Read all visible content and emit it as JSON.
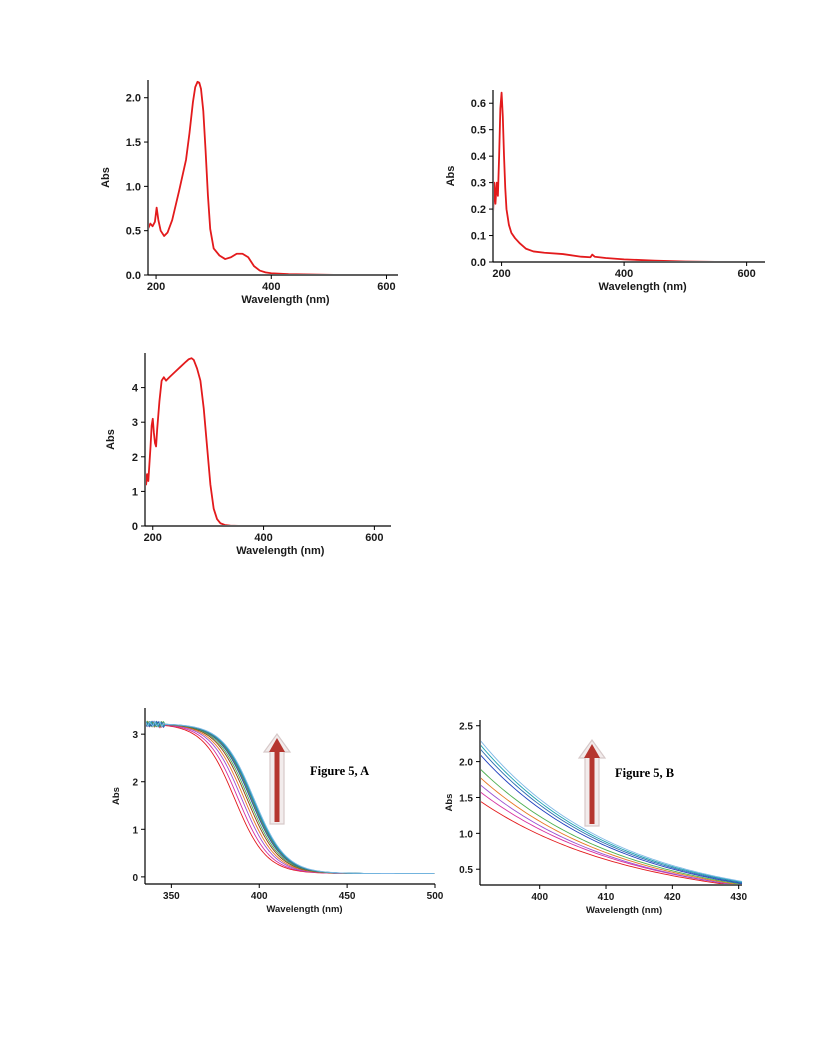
{
  "chart_data": [
    {
      "id": "p1",
      "type": "line",
      "xlabel": "Wavelength (nm)",
      "ylabel": "Abs",
      "xlim": [
        186,
        620
      ],
      "ylim": [
        0,
        2.2
      ],
      "xticks": [
        200,
        400,
        600
      ],
      "yticks": [
        0.0,
        0.5,
        1.0,
        1.5,
        2.0
      ],
      "xticklabels": [
        "200",
        "400",
        "600"
      ],
      "yticklabels": [
        "0.0",
        "0.5",
        "1.0",
        "1.5",
        "2.0"
      ],
      "series": [
        {
          "color": "#e31a1c",
          "x": [
            186,
            190,
            194,
            198,
            201,
            204,
            208,
            214,
            220,
            228,
            240,
            252,
            258,
            264,
            268,
            272,
            275,
            278,
            282,
            286,
            290,
            294,
            300,
            310,
            320,
            330,
            340,
            350,
            360,
            370,
            380,
            390,
            400,
            430,
            470,
            520,
            570,
            620
          ],
          "y": [
            0.52,
            0.58,
            0.55,
            0.6,
            0.76,
            0.62,
            0.5,
            0.44,
            0.48,
            0.62,
            0.95,
            1.3,
            1.6,
            1.95,
            2.12,
            2.18,
            2.17,
            2.1,
            1.85,
            1.4,
            0.9,
            0.52,
            0.3,
            0.22,
            0.18,
            0.2,
            0.24,
            0.24,
            0.2,
            0.1,
            0.05,
            0.03,
            0.02,
            0.01,
            0.005,
            0.0,
            0.0,
            0.0
          ]
        }
      ]
    },
    {
      "id": "p2",
      "type": "line",
      "xlabel": "Wavelength (nm)",
      "ylabel": "Abs",
      "xlim": [
        186,
        630
      ],
      "ylim": [
        0,
        0.65
      ],
      "xticks": [
        200,
        400,
        600
      ],
      "yticks": [
        0.0,
        0.1,
        0.2,
        0.3,
        0.4,
        0.5,
        0.6
      ],
      "xticklabels": [
        "200",
        "400",
        "600"
      ],
      "yticklabels": [
        "0.0",
        "0.1",
        "0.2",
        "0.3",
        "0.4",
        "0.5",
        "0.6"
      ],
      "series": [
        {
          "color": "#e31a1c",
          "x": [
            186,
            188,
            190,
            192,
            194,
            196,
            198,
            200,
            202,
            204,
            206,
            208,
            212,
            216,
            222,
            230,
            240,
            252,
            270,
            300,
            330,
            345,
            348,
            352,
            370,
            400,
            450,
            500,
            560,
            630
          ],
          "y": [
            0.18,
            0.3,
            0.22,
            0.3,
            0.25,
            0.4,
            0.58,
            0.64,
            0.55,
            0.4,
            0.28,
            0.2,
            0.14,
            0.11,
            0.09,
            0.07,
            0.05,
            0.04,
            0.035,
            0.03,
            0.02,
            0.018,
            0.028,
            0.02,
            0.015,
            0.01,
            0.005,
            0.002,
            0.0,
            0.0
          ]
        }
      ]
    },
    {
      "id": "p3",
      "type": "line",
      "xlabel": "Wavelength (nm)",
      "ylabel": "Abs",
      "xlim": [
        186,
        630
      ],
      "ylim": [
        0,
        5.0
      ],
      "xticks": [
        200,
        400,
        600
      ],
      "yticks": [
        0,
        1,
        2,
        3,
        4
      ],
      "xticklabels": [
        "200",
        "400",
        "600"
      ],
      "yticklabels": [
        "0",
        "1",
        "2",
        "3",
        "4"
      ],
      "series": [
        {
          "color": "#e31a1c",
          "x": [
            186,
            188,
            190,
            192,
            194,
            196,
            198,
            200,
            202,
            204,
            206,
            208,
            212,
            216,
            220,
            224,
            230,
            240,
            250,
            260,
            265,
            270,
            274,
            280,
            286,
            292,
            298,
            304,
            310,
            316,
            322,
            330,
            340,
            360,
            400,
            450,
            500,
            560,
            630
          ],
          "y": [
            1.6,
            1.2,
            1.5,
            1.3,
            1.8,
            2.3,
            2.9,
            3.1,
            2.7,
            2.4,
            2.3,
            2.8,
            3.6,
            4.2,
            4.3,
            4.2,
            4.3,
            4.45,
            4.6,
            4.75,
            4.82,
            4.85,
            4.8,
            4.55,
            4.2,
            3.4,
            2.3,
            1.2,
            0.5,
            0.2,
            0.08,
            0.03,
            0.01,
            0.0,
            0.0,
            0.0,
            0.0,
            0.0,
            0.0
          ]
        }
      ]
    },
    {
      "id": "p4",
      "type": "line",
      "xlabel": "Wavelength (nm)",
      "ylabel": "Abs",
      "xlim": [
        335,
        500
      ],
      "ylim": [
        -0.15,
        3.55
      ],
      "xticks": [
        350,
        400,
        450,
        500
      ],
      "yticks": [
        0,
        1,
        2,
        3
      ],
      "xticklabels": [
        "350",
        "400",
        "450",
        "500"
      ],
      "yticklabels": [
        "0",
        "1",
        "2",
        "3"
      ],
      "figure_label": "Figure 5, A",
      "plateau": 3.22,
      "base_level": 0.07,
      "series": [
        {
          "color": "#e31a1c",
          "midpoint": 386,
          "width": 9
        },
        {
          "color": "#d62fa0",
          "midpoint": 388,
          "width": 9
        },
        {
          "color": "#9b4fd1",
          "midpoint": 390,
          "width": 9
        },
        {
          "color": "#e87722",
          "midpoint": 391.5,
          "width": 9
        },
        {
          "color": "#8a3b12",
          "midpoint": 393,
          "width": 9
        },
        {
          "color": "#4caf50",
          "midpoint": 394,
          "width": 9
        },
        {
          "color": "#1f3fbf",
          "midpoint": 395,
          "width": 9
        },
        {
          "color": "#6a9a3a",
          "midpoint": 395.5,
          "width": 9
        },
        {
          "color": "#2b6cb0",
          "midpoint": 396,
          "width": 9
        },
        {
          "color": "#1aa1b0",
          "midpoint": 396.5,
          "width": 9
        },
        {
          "color": "#7fb8e6",
          "midpoint": 397,
          "width": 9
        }
      ]
    },
    {
      "id": "p5",
      "type": "line",
      "xlabel": "Wavelength (nm)",
      "ylabel": "Abs",
      "xlim": [
        391,
        430.5
      ],
      "ylim": [
        0.28,
        2.58
      ],
      "xticks": [
        400,
        410,
        420,
        430
      ],
      "yticks": [
        0.5,
        1.0,
        1.5,
        2.0,
        2.5
      ],
      "xticklabels": [
        "400",
        "410",
        "420",
        "430"
      ],
      "yticklabels": [
        "0.5",
        "1.0",
        "1.5",
        "2.0",
        "2.5"
      ],
      "figure_label": "Figure 5, B",
      "series": [
        {
          "color": "#e31a1c",
          "y_start": 1.45,
          "y_end": 0.26
        },
        {
          "color": "#d62fa0",
          "y_start": 1.58,
          "y_end": 0.27
        },
        {
          "color": "#9b4fd1",
          "y_start": 1.68,
          "y_end": 0.27
        },
        {
          "color": "#e87722",
          "y_start": 1.78,
          "y_end": 0.28
        },
        {
          "color": "#4caf50",
          "y_start": 1.9,
          "y_end": 0.29
        },
        {
          "color": "#1f3fbf",
          "y_start": 2.1,
          "y_end": 0.3
        },
        {
          "color": "#2b6cb0",
          "y_start": 2.18,
          "y_end": 0.31
        },
        {
          "color": "#1aa1b0",
          "y_start": 2.24,
          "y_end": 0.32
        },
        {
          "color": "#7fb8e6",
          "y_start": 2.3,
          "y_end": 0.33
        }
      ]
    }
  ],
  "arrow_color": "#b5362f"
}
